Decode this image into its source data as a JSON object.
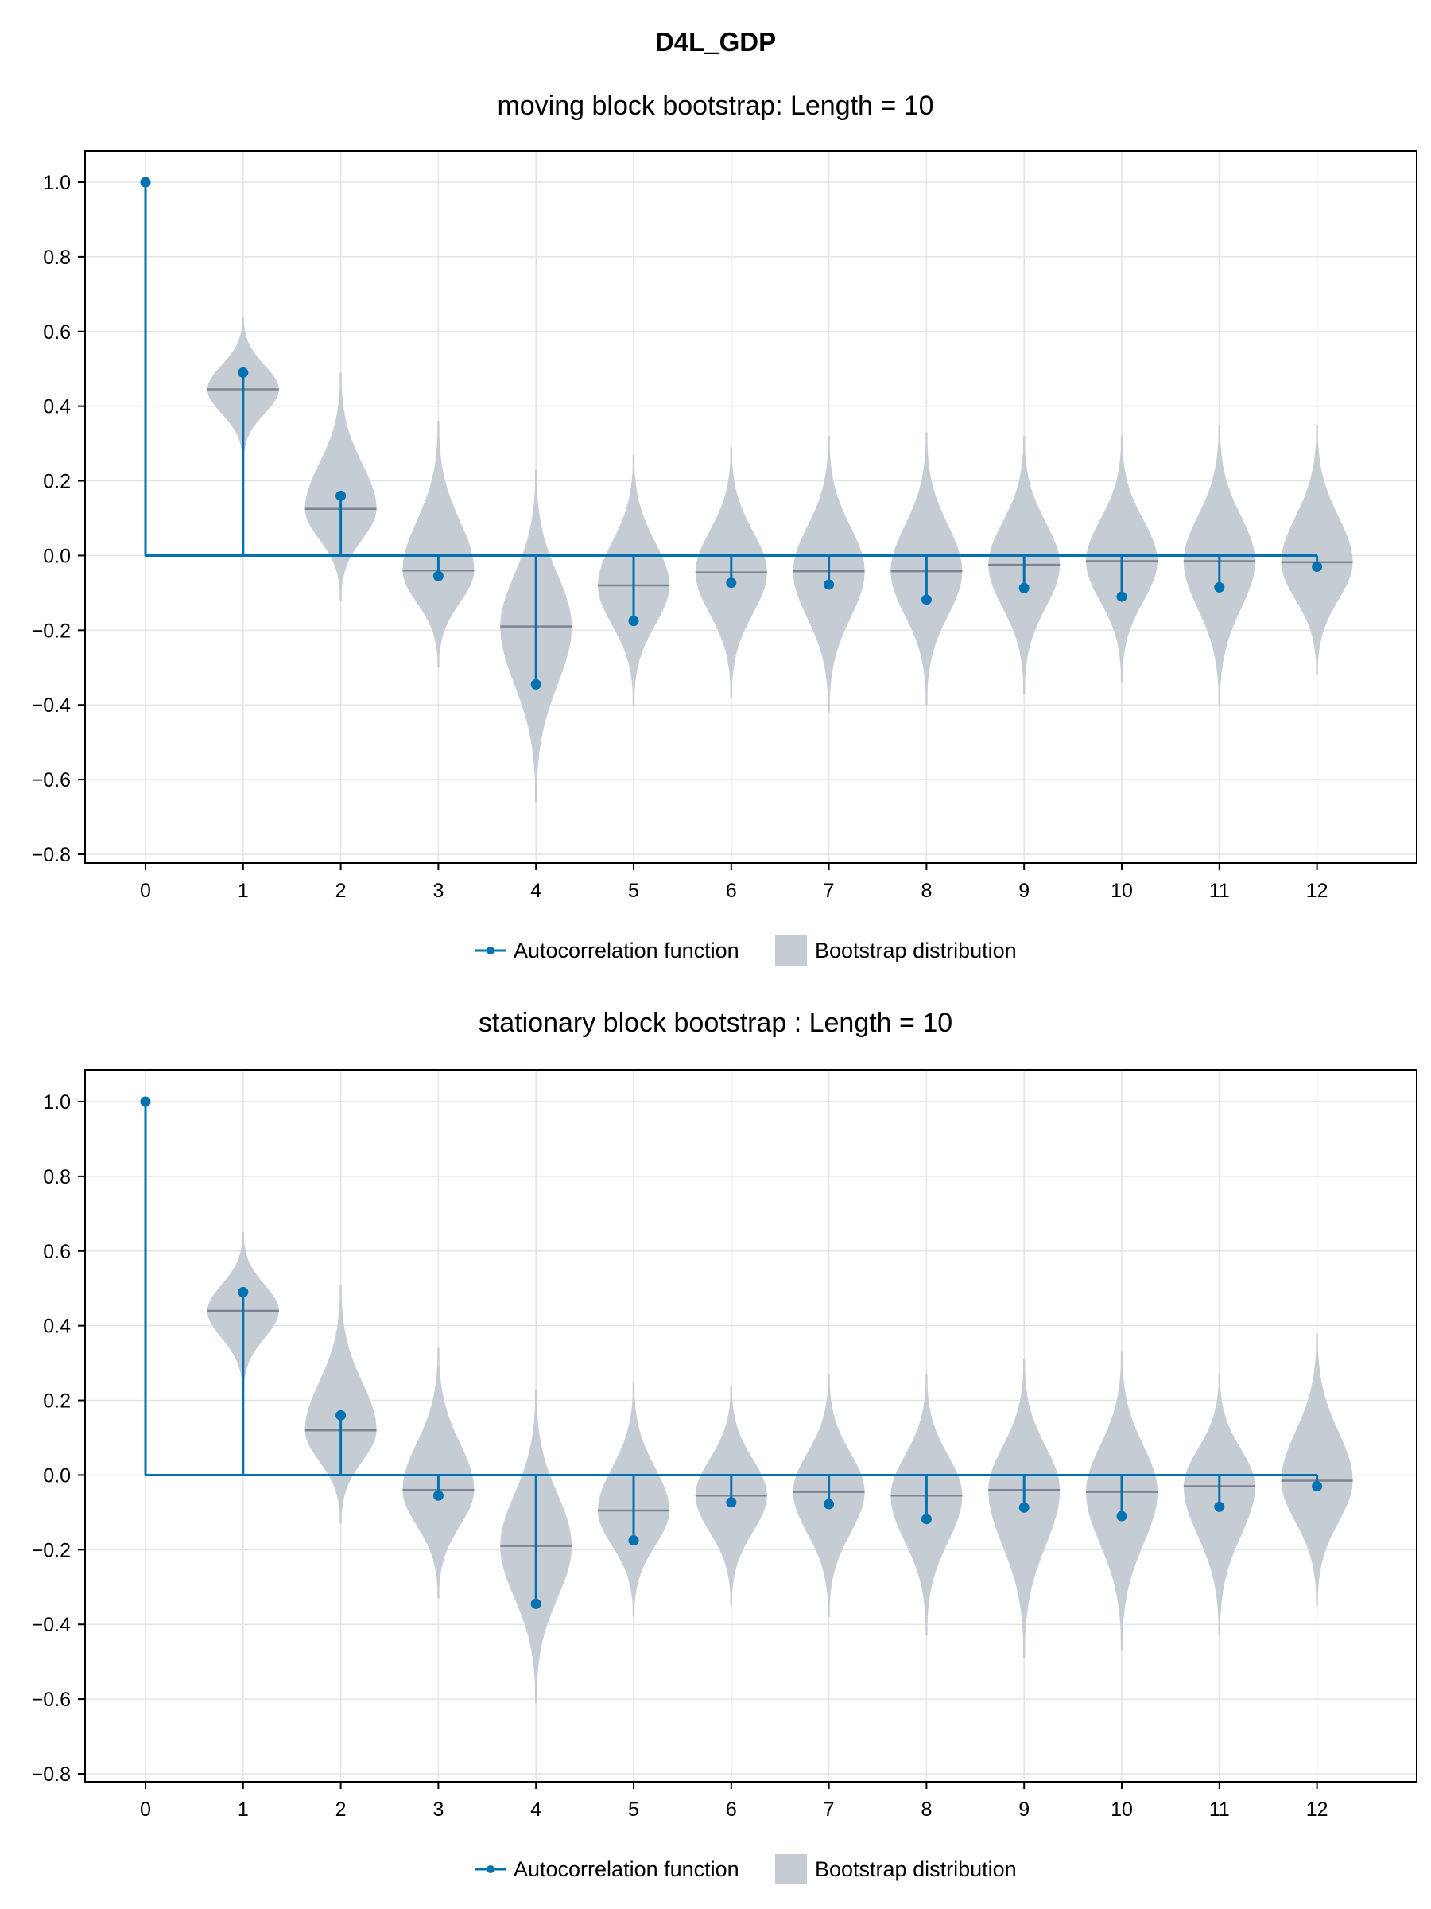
{
  "figure": {
    "title": "D4L_GDP"
  },
  "colors": {
    "acf": "#0072b2",
    "violin": "#c6ccd3",
    "median": "#7b8592",
    "grid": "#e4e4e4",
    "frame": "#000000"
  },
  "chart_data": [
    {
      "type": "violin+stem",
      "title": "moving block bootstrap: Length = 10",
      "xlabel": "",
      "ylabel": "",
      "x": [
        0,
        1,
        2,
        3,
        4,
        5,
        6,
        7,
        8,
        9,
        10,
        11,
        12
      ],
      "ylim": [
        -0.8,
        1.0
      ],
      "yticks": [
        -0.8,
        -0.6,
        -0.4,
        -0.2,
        0.0,
        0.2,
        0.4,
        0.6,
        0.8,
        1.0
      ],
      "ytick_labels": [
        "−0.8",
        "−0.6",
        "−0.4",
        "−0.2",
        "0.0",
        "0.2",
        "0.4",
        "0.6",
        "0.8",
        "1.0"
      ],
      "grid": true,
      "legend": {
        "placement": "bottom-center",
        "entries": [
          "Autocorrelation function",
          "Bootstrap distribution"
        ]
      },
      "series": [
        {
          "name": "Autocorrelation function",
          "values": [
            1.0,
            0.49,
            0.16,
            -0.055,
            -0.345,
            -0.175,
            -0.073,
            -0.078,
            -0.118,
            -0.087,
            -0.11,
            -0.085,
            -0.03
          ]
        },
        {
          "name": "Bootstrap distribution",
          "median": [
            null,
            0.445,
            0.125,
            -0.04,
            -0.19,
            -0.08,
            -0.045,
            -0.042,
            -0.042,
            -0.025,
            -0.015,
            -0.015,
            -0.018
          ],
          "min": [
            null,
            0.25,
            -0.12,
            -0.3,
            -0.66,
            -0.4,
            -0.38,
            -0.42,
            -0.4,
            -0.37,
            -0.34,
            -0.4,
            -0.32
          ],
          "max": [
            null,
            0.64,
            0.49,
            0.36,
            0.23,
            0.27,
            0.29,
            0.32,
            0.33,
            0.32,
            0.32,
            0.35,
            0.35
          ]
        }
      ]
    },
    {
      "type": "violin+stem",
      "title": "stationary block bootstrap : Length = 10",
      "xlabel": "",
      "ylabel": "",
      "x": [
        0,
        1,
        2,
        3,
        4,
        5,
        6,
        7,
        8,
        9,
        10,
        11,
        12
      ],
      "ylim": [
        -0.8,
        1.0
      ],
      "yticks": [
        -0.8,
        -0.6,
        -0.4,
        -0.2,
        0.0,
        0.2,
        0.4,
        0.6,
        0.8,
        1.0
      ],
      "ytick_labels": [
        "−0.8",
        "−0.6",
        "−0.4",
        "−0.2",
        "0.0",
        "0.2",
        "0.4",
        "0.6",
        "0.8",
        "1.0"
      ],
      "grid": true,
      "legend": {
        "placement": "bottom-center",
        "entries": [
          "Autocorrelation function",
          "Bootstrap distribution"
        ]
      },
      "series": [
        {
          "name": "Autocorrelation function",
          "values": [
            1.0,
            0.49,
            0.16,
            -0.055,
            -0.345,
            -0.175,
            -0.073,
            -0.078,
            -0.118,
            -0.087,
            -0.11,
            -0.085,
            -0.03
          ]
        },
        {
          "name": "Bootstrap distribution",
          "median": [
            null,
            0.44,
            0.12,
            -0.04,
            -0.19,
            -0.095,
            -0.055,
            -0.045,
            -0.055,
            -0.04,
            -0.045,
            -0.03,
            -0.015
          ],
          "min": [
            null,
            0.22,
            -0.13,
            -0.33,
            -0.61,
            -0.38,
            -0.35,
            -0.38,
            -0.43,
            -0.49,
            -0.47,
            -0.43,
            -0.35
          ],
          "max": [
            null,
            0.65,
            0.51,
            0.34,
            0.23,
            0.25,
            0.24,
            0.27,
            0.27,
            0.31,
            0.33,
            0.27,
            0.38
          ]
        }
      ]
    }
  ]
}
